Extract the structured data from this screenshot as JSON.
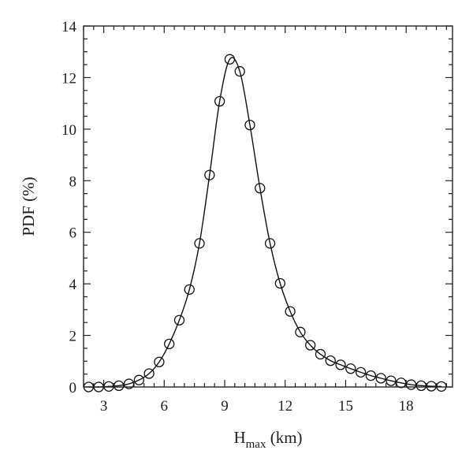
{
  "chart_data": {
    "type": "line",
    "xlabel": "H",
    "xlabel_sub": "max",
    "xlabel_unit": " (km)",
    "ylabel": "PDF (%)",
    "xlim": [
      2,
      20.3
    ],
    "ylim": [
      0,
      14
    ],
    "x_ticks": [
      3,
      6,
      9,
      12,
      15,
      18
    ],
    "y_ticks": [
      0,
      2,
      4,
      6,
      8,
      10,
      12,
      14
    ],
    "x_minor_step": 0.5,
    "y_minor_step": 0.5,
    "grid": false,
    "legend": "none",
    "series": [
      {
        "x": [
          2.25,
          2.75,
          3.25,
          3.75,
          4.25,
          4.75,
          5.25,
          5.75,
          6.25,
          6.75,
          7.25,
          7.75,
          8.25,
          8.75,
          9.25,
          9.75,
          10.25,
          10.75,
          11.25,
          11.75,
          12.25,
          12.75,
          13.25,
          13.75,
          14.25,
          14.75,
          15.25,
          15.75,
          16.25,
          16.75,
          17.25,
          17.75,
          18.25,
          18.75,
          19.25,
          19.75
        ],
        "y": [
          0.0,
          0.0,
          0.02,
          0.05,
          0.12,
          0.27,
          0.52,
          0.97,
          1.67,
          2.59,
          3.78,
          5.57,
          8.22,
          11.08,
          12.71,
          12.24,
          10.16,
          7.71,
          5.57,
          4.02,
          2.93,
          2.13,
          1.62,
          1.27,
          1.02,
          0.86,
          0.71,
          0.57,
          0.44,
          0.34,
          0.24,
          0.16,
          0.09,
          0.05,
          0.03,
          0.02
        ]
      }
    ]
  }
}
